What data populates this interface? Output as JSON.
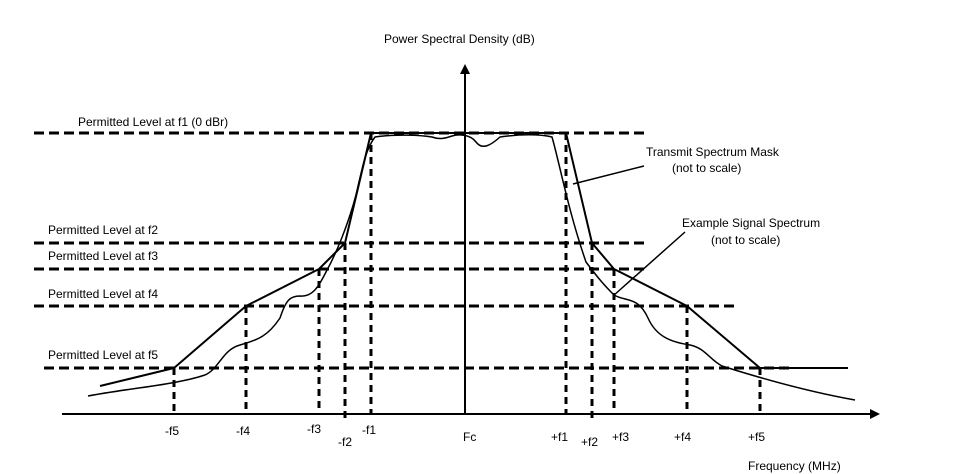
{
  "title": "Power Spectral Density (dB)",
  "x_axis_label": "Frequency (MHz)",
  "levels": [
    {
      "id": "f1",
      "label": "Permitted Level at f1  (0 dBr)"
    },
    {
      "id": "f2",
      "label": "Permitted Level at f2"
    },
    {
      "id": "f3",
      "label": "Permitted Level at f3"
    },
    {
      "id": "f4",
      "label": "Permitted Level at f4"
    },
    {
      "id": "f5",
      "label": "Permitted Level at f5"
    }
  ],
  "ticks": {
    "neg_f5": "-f5",
    "neg_f4": "-f4",
    "neg_f3": "-f3",
    "neg_f2": "-f2",
    "neg_f1": "-f1",
    "center": "Fc",
    "pos_f1": "+f1",
    "pos_f2": "+f2",
    "pos_f3": "+f3",
    "pos_f4": "+f4",
    "pos_f5": "+f5"
  },
  "annotations": {
    "mask_line1": "Transmit Spectrum Mask",
    "mask_line2": "(not to scale)",
    "signal_line1": "Example Signal Spectrum",
    "signal_line2": "(not to scale)"
  }
}
